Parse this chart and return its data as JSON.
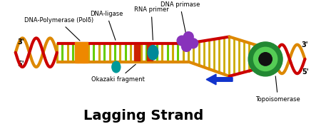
{
  "title": "Lagging Strand",
  "title_fontsize": 14,
  "title_bold": true,
  "bg_color": "#ffffff",
  "labels": {
    "dna_polymerase": "DNA-Polymerase (Polδ)",
    "dna_ligase": "DNA-ligase",
    "rna_primer": "RNA primer",
    "dna_primase": "DNA primase",
    "okazaki": "Okazaki fragment",
    "topoisomerase": "Topoisomerase",
    "three_prime_left": "3'",
    "five_prime_left": "5'",
    "three_prime_right": "3'",
    "five_prime_right": "5'"
  },
  "colors": {
    "red_strand": "#cc0000",
    "orange_strand": "#dd8800",
    "yellow_rung": "#ccaa00",
    "green_rung": "#66cc00",
    "orange_block": "#ee8800",
    "teal_ellipse": "#008899",
    "teal_drop": "#009999",
    "purple": "#8833bb",
    "blue_arrow": "#1133cc",
    "green_ring": "#228833",
    "green_inner": "#55cc55",
    "black_center": "#111111",
    "label_color": "#000000",
    "red_gap": "#cc2200"
  }
}
